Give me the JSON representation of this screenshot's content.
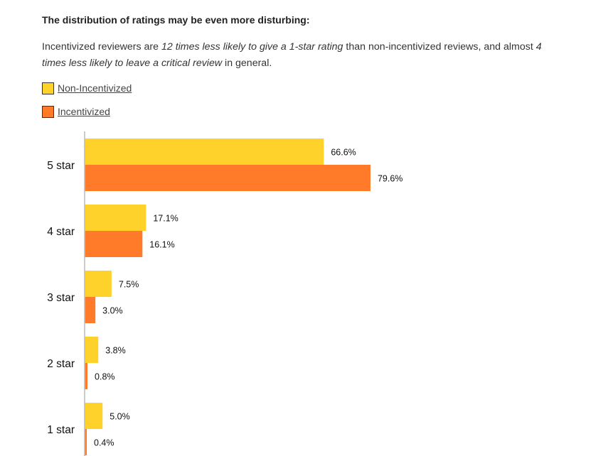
{
  "heading": "The distribution of ratings may be even more disturbing:",
  "intro": {
    "t1": "Incentivized reviewers are ",
    "i1": "12 times less likely to give a 1-star rating",
    "t2": " than non-incentivized reviews, and almost ",
    "i2": "4 times less likely to leave a critical review",
    "t3": " in general."
  },
  "colors": {
    "non_incentivized": "#FFD12B",
    "incentivized": "#FF7B2A",
    "axis": "#BBBBBB"
  },
  "chart_data": {
    "type": "bar",
    "orientation": "horizontal",
    "categories": [
      "5 star",
      "4 star",
      "3 star",
      "2 star",
      "1  star"
    ],
    "series": [
      {
        "name": "Non-Incentivized",
        "values": [
          66.6,
          17.1,
          7.5,
          3.8,
          5.0
        ],
        "labels": [
          "66.6%",
          "17.1%",
          "7.5%",
          "3.8%",
          "5.0%"
        ]
      },
      {
        "name": "Incentivized",
        "values": [
          79.6,
          16.1,
          3.0,
          0.8,
          0.4
        ],
        "labels": [
          "79.6%",
          "16.1%",
          "3.0%",
          "0.8%",
          "0.4%"
        ]
      }
    ],
    "legend": "top-left",
    "grid": false
  }
}
